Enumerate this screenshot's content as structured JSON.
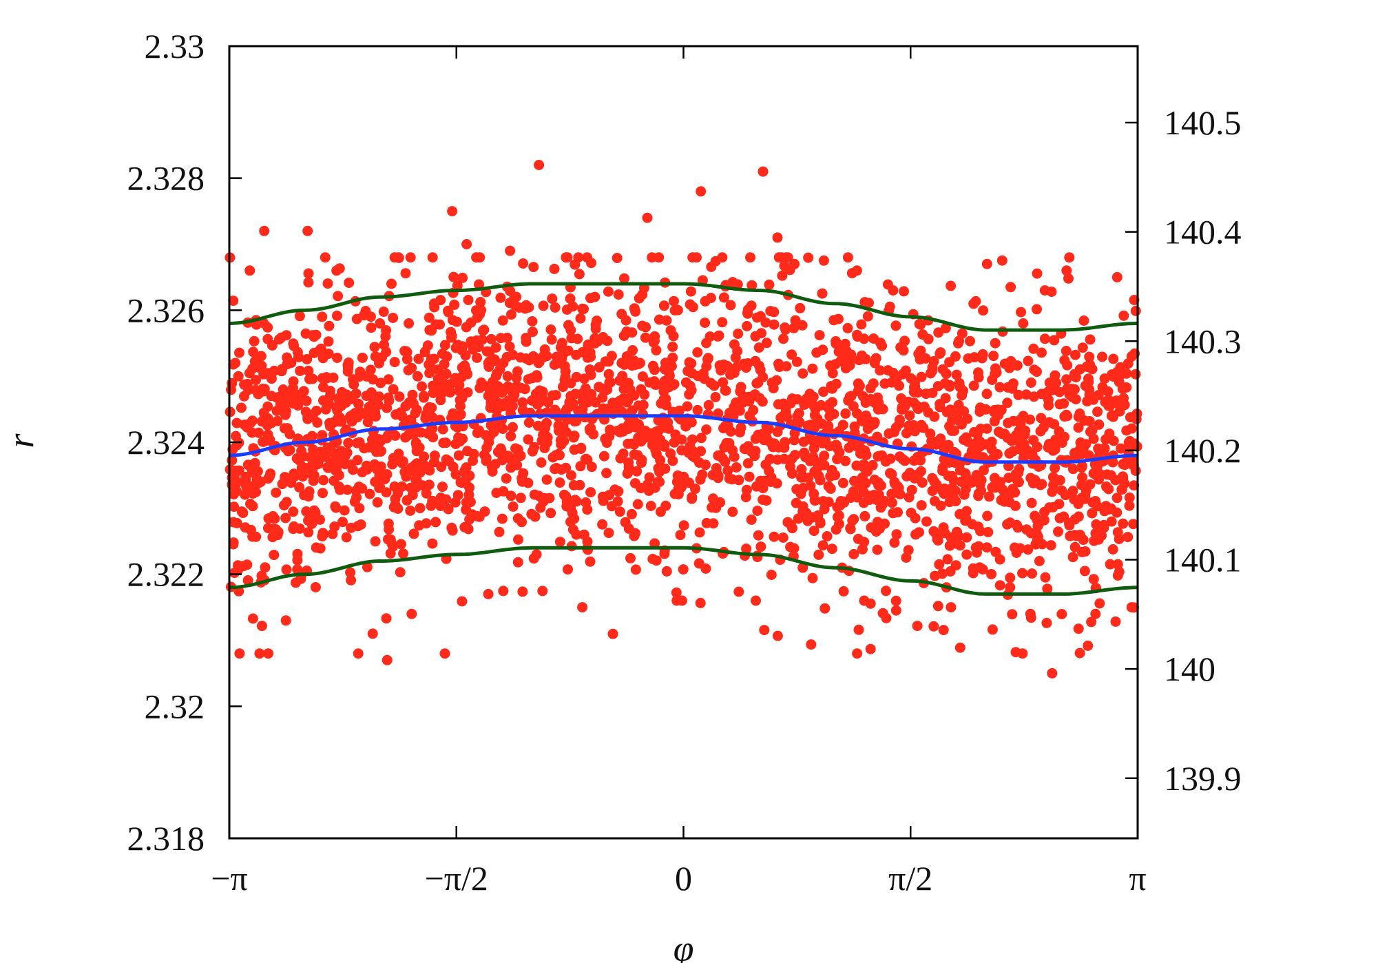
{
  "chart_data": {
    "type": "scatter",
    "xlabel": "φ",
    "ylabel": "r",
    "xlim": [
      -3.14159,
      3.14159
    ],
    "ylim": [
      2.318,
      2.33
    ],
    "y2lim": [
      139.845,
      140.57
    ],
    "x_ticks": [
      {
        "value": -3.14159,
        "label": "−π"
      },
      {
        "value": -1.5708,
        "label": "−π/2"
      },
      {
        "value": 0,
        "label": "0"
      },
      {
        "value": 1.5708,
        "label": "π/2"
      },
      {
        "value": 3.14159,
        "label": "π"
      }
    ],
    "y_ticks": [
      {
        "value": 2.318,
        "label": "2.318"
      },
      {
        "value": 2.32,
        "label": "2.32"
      },
      {
        "value": 2.322,
        "label": "2.322"
      },
      {
        "value": 2.324,
        "label": "2.324"
      },
      {
        "value": 2.326,
        "label": "2.326"
      },
      {
        "value": 2.328,
        "label": "2.328"
      },
      {
        "value": 2.33,
        "label": "2.33"
      }
    ],
    "y2_ticks": [
      {
        "value": 139.9,
        "label": "139.9"
      },
      {
        "value": 140.0,
        "label": "140"
      },
      {
        "value": 140.1,
        "label": "140.1"
      },
      {
        "value": 140.2,
        "label": "140.2"
      },
      {
        "value": 140.3,
        "label": "140.3"
      },
      {
        "value": 140.4,
        "label": "140.4"
      },
      {
        "value": 140.5,
        "label": "140.5"
      }
    ],
    "grid": false,
    "legend": "none",
    "series": [
      {
        "kind": "scatter",
        "color": "#ff2a1a",
        "points": [
          [
            -1.0,
            2.3282
          ],
          [
            0.55,
            2.3281
          ],
          [
            0.12,
            2.3278
          ],
          [
            -1.6,
            2.3275
          ],
          [
            -2.6,
            2.3272
          ],
          [
            -2.9,
            2.3272
          ],
          [
            -0.25,
            2.3274
          ],
          [
            0.65,
            2.3271
          ],
          [
            -1.5,
            2.327
          ],
          [
            -1.2,
            2.3269
          ],
          [
            -3.0,
            2.3266
          ],
          [
            -2.4,
            2.3266
          ],
          [
            2.1,
            2.3267
          ],
          [
            2.65,
            2.3266
          ],
          [
            1.2,
            2.3266
          ],
          [
            -2.02,
            2.3264
          ],
          [
            -1.4,
            2.326
          ],
          [
            3.0,
            2.3265
          ],
          [
            2.5,
            2.3263
          ],
          [
            1.45,
            2.3263
          ],
          [
            -2.5,
            2.3259
          ],
          [
            -2.1,
            2.3258
          ],
          [
            2.35,
            2.3258
          ],
          [
            -1.9,
            2.3258
          ],
          [
            1.9,
            2.3255
          ],
          [
            -3.1,
            2.3252
          ],
          [
            3.1,
            2.3253
          ],
          [
            -1.7,
            2.3251
          ],
          [
            -0.3,
            2.3252
          ],
          [
            1.6,
            2.3249
          ],
          [
            -2.05,
            2.3207
          ],
          [
            -2.25,
            2.3208
          ],
          [
            -2.15,
            2.3211
          ],
          [
            -2.75,
            2.3213
          ],
          [
            -1.88,
            2.3214
          ],
          [
            -0.7,
            2.3215
          ],
          [
            0.5,
            2.3216
          ],
          [
            -0.01,
            2.3216
          ],
          [
            1.85,
            2.3215
          ],
          [
            2.4,
            2.3214
          ],
          [
            2.85,
            2.3214
          ],
          [
            3.1,
            2.3215
          ],
          [
            1.25,
            2.3216
          ],
          [
            -1.35,
            2.3217
          ],
          [
            2.55,
            2.3205
          ]
        ]
      },
      {
        "kind": "line",
        "name": "",
        "color": "#1a3cff",
        "x": [
          -3.14159,
          -2.618,
          -2.094,
          -1.571,
          -1.047,
          -0.524,
          0,
          0.524,
          1.047,
          1.571,
          2.094,
          2.618,
          3.14159
        ],
        "y": [
          2.3238,
          2.324,
          2.3242,
          2.3243,
          2.3244,
          2.3244,
          2.3244,
          2.3243,
          2.3241,
          2.3239,
          2.3237,
          2.3237,
          2.3238
        ]
      },
      {
        "kind": "line",
        "name": "",
        "color": "#0f5c0f",
        "x": [
          -3.14159,
          -2.618,
          -2.094,
          -1.571,
          -1.047,
          -0.524,
          0,
          0.524,
          1.047,
          1.571,
          2.094,
          2.618,
          3.14159
        ],
        "y": [
          2.3258,
          2.326,
          2.3262,
          2.3263,
          2.3264,
          2.3264,
          2.3264,
          2.3263,
          2.3261,
          2.3259,
          2.3257,
          2.3257,
          2.3258
        ]
      },
      {
        "kind": "line",
        "name": "",
        "color": "#0f5c0f",
        "x": [
          -3.14159,
          -2.618,
          -2.094,
          -1.571,
          -1.047,
          -0.524,
          0,
          0.524,
          1.047,
          1.571,
          2.094,
          2.618,
          3.14159
        ],
        "y": [
          2.3218,
          2.322,
          2.3222,
          2.3223,
          2.3224,
          2.3224,
          2.3224,
          2.3223,
          2.3221,
          2.3219,
          2.3217,
          2.3217,
          2.3218
        ]
      }
    ],
    "density_band": {
      "color": "#ff2a1a",
      "center_series_index": 1,
      "spread_sigma": 0.0011,
      "point_count": 2500
    }
  }
}
